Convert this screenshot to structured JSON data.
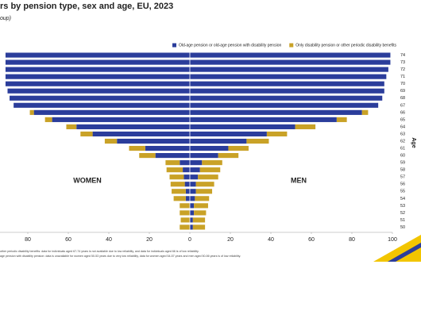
{
  "chart_data": {
    "type": "pyramid",
    "title": "rs by pension type, sex and age, EU, 2023",
    "subtitle": "oup)",
    "y_axis_label": "Age",
    "left_label": "WOMEN",
    "right_label": "MEN",
    "categories": [
      "74",
      "73",
      "72",
      "71",
      "70",
      "69",
      "68",
      "67",
      "66",
      "65",
      "64",
      "63",
      "62",
      "61",
      "60",
      "59",
      "58",
      "57",
      "56",
      "55",
      "54",
      "53",
      "52",
      "51",
      "50"
    ],
    "series": [
      {
        "name": "Old-age pension or old-age pension with disability pension",
        "color": "#2b3d9b",
        "women": [
          91,
          91,
          91,
          91,
          91,
          90,
          89,
          87,
          77,
          68,
          56,
          48,
          36,
          22,
          17,
          5,
          3.5,
          3,
          2.5,
          2,
          2,
          null,
          null,
          null,
          null
        ],
        "men": [
          99,
          99,
          98,
          97,
          96,
          96,
          95,
          93,
          85,
          72.5,
          52,
          38,
          28,
          19,
          14,
          6,
          5,
          4,
          3,
          3,
          2.5,
          2,
          2,
          1.5,
          1.5
        ]
      },
      {
        "name": "Only disability pension or other periodic disability benefits",
        "color": "#c9a227",
        "women": [
          null,
          null,
          null,
          null,
          null,
          null,
          null,
          null,
          2,
          3.5,
          5,
          6,
          6,
          8,
          8,
          7,
          8,
          7,
          7,
          7,
          6,
          5,
          5,
          4.5,
          5
        ],
        "men": [
          null,
          null,
          null,
          null,
          null,
          null,
          null,
          null,
          3,
          5,
          10,
          10,
          11,
          10,
          10,
          10,
          10,
          10,
          9,
          8,
          7,
          7,
          6,
          6,
          6
        ]
      }
    ],
    "xlim": [
      -100,
      100
    ],
    "xticks": [
      {
        "value": -80,
        "label": "80"
      },
      {
        "value": -60,
        "label": "60"
      },
      {
        "value": -40,
        "label": "40"
      },
      {
        "value": -20,
        "label": "20"
      },
      0,
      20,
      40,
      60,
      80,
      100
    ],
    "footnotes": [
      "other periodic disability benefits: data for individuals aged 67-74 years is not available due to low reliability, and data for individuals aged 66 is of low reliability.",
      "age pension with disability pension: data is unavailable for women aged 50-53 years due to very low reliability, data for women aged 54-57 years and men aged 50-56 years is of low reliability."
    ]
  }
}
